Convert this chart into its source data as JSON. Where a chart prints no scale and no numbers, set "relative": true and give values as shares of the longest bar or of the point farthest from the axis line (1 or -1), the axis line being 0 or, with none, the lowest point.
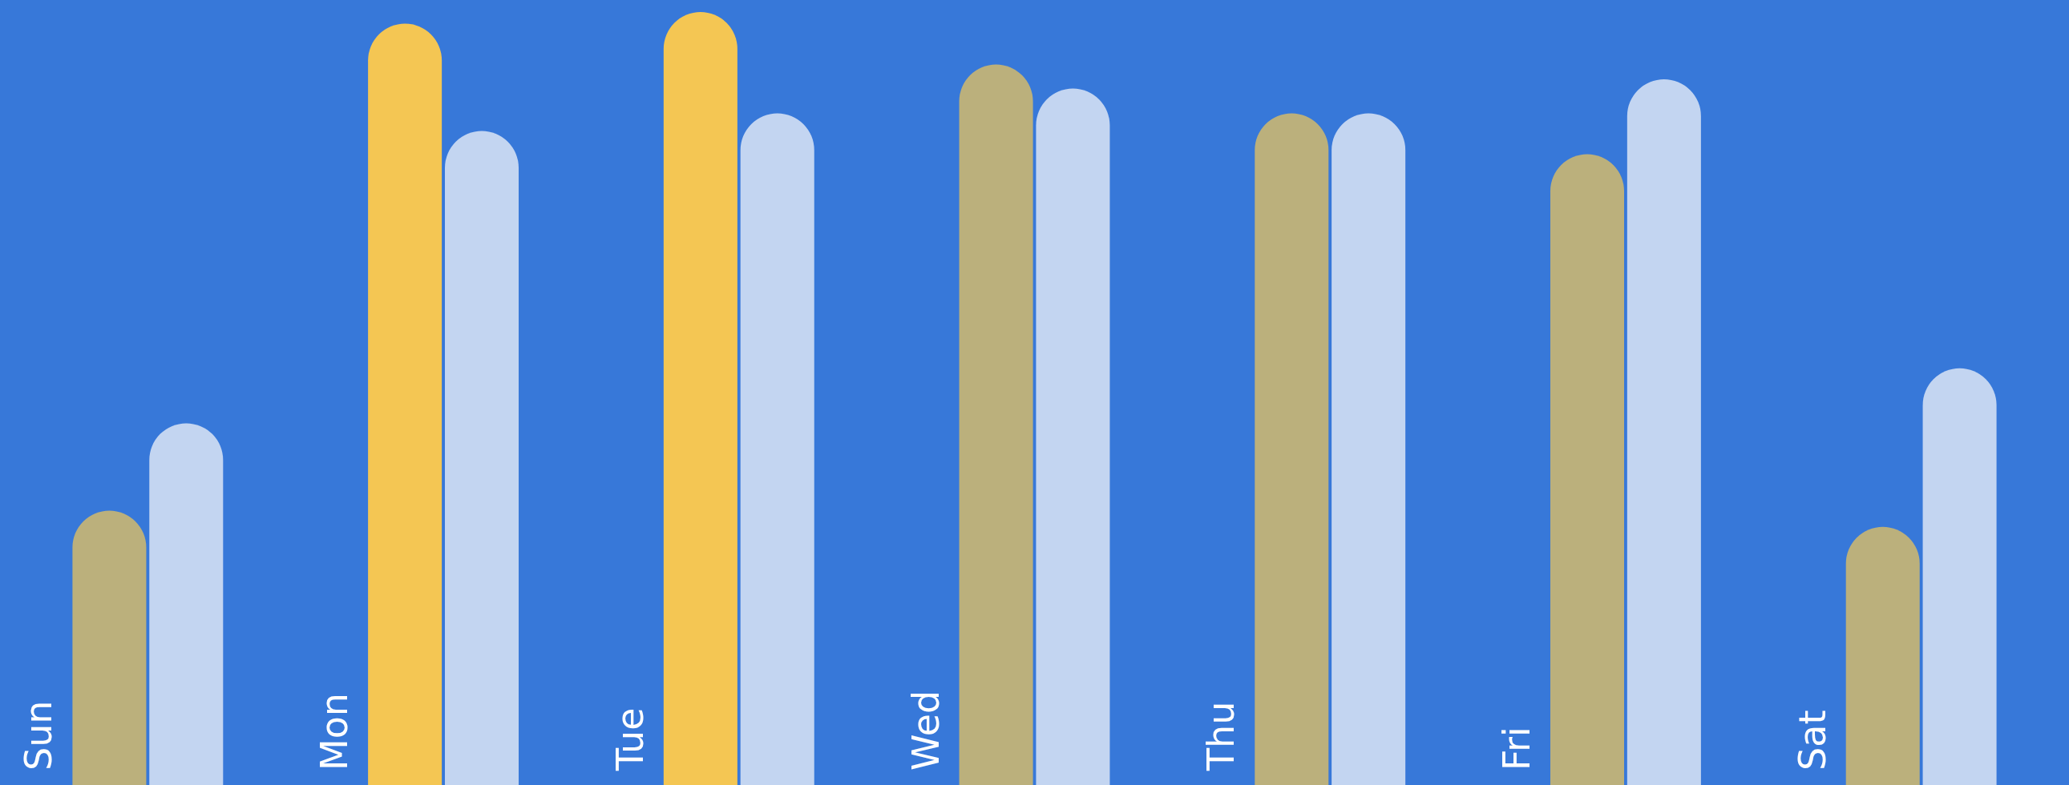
{
  "chart_data": {
    "type": "bar",
    "relative": true,
    "categories": [
      "Sun",
      "Mon",
      "Tue",
      "Wed",
      "Thu",
      "Fri",
      "Sat"
    ],
    "series": [
      {
        "colors": [
          "#bbb07c",
          "#f4c653",
          "#f4c653",
          "#bbb07c",
          "#bbb07c",
          "#bbb07c",
          "#bbb07c"
        ],
        "values": [
          0.355,
          0.985,
          1,
          0.932,
          0.869,
          0.816,
          0.334
        ]
      },
      {
        "color": "#c3d5f1",
        "values": [
          0.468,
          0.846,
          0.869,
          0.901,
          0.869,
          0.913,
          0.539
        ]
      }
    ],
    "legend": false
  }
}
